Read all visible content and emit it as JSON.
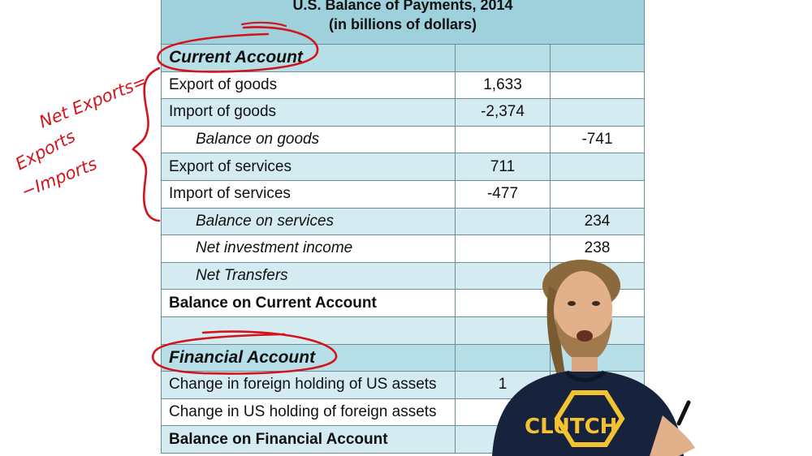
{
  "table": {
    "title_line1": "U.S. Balance of Payments, 2014",
    "title_line2": "(in billions of dollars)",
    "rows": [
      {
        "label": "Current Account",
        "a": "",
        "b": "",
        "style": "section"
      },
      {
        "label": "Export of goods",
        "a": "1,633",
        "b": "",
        "style": "normal"
      },
      {
        "label": "Import of goods",
        "a": "-2,374",
        "b": "",
        "style": "normal"
      },
      {
        "label": "Balance on goods",
        "a": "",
        "b": "-741",
        "style": "indent"
      },
      {
        "label": "Export of services",
        "a": "711",
        "b": "",
        "style": "normal"
      },
      {
        "label": "Import of services",
        "a": "-477",
        "b": "",
        "style": "normal"
      },
      {
        "label": "Balance on services",
        "a": "",
        "b": "234",
        "style": "indent"
      },
      {
        "label": "Net investment income",
        "a": "",
        "b": "238",
        "style": "indent"
      },
      {
        "label": "Net Transfers",
        "a": "",
        "b": "",
        "style": "indent"
      },
      {
        "label": "Balance on Current Account",
        "a": "",
        "b": "",
        "style": "bold"
      },
      {
        "label": "",
        "a": "",
        "b": "",
        "style": "normal"
      },
      {
        "label": "Financial Account",
        "a": "",
        "b": "",
        "style": "section"
      },
      {
        "label": "Change in foreign holding of US assets",
        "a": "1",
        "b": "",
        "style": "normal"
      },
      {
        "label": "Change in US holding of foreign assets",
        "a": "",
        "b": "",
        "style": "normal"
      },
      {
        "label": "Balance on Financial Account",
        "a": "",
        "b": "",
        "style": "bold"
      }
    ]
  },
  "annotations": {
    "net_exports": "Net Exports=",
    "exports": "Exports",
    "minus_imports": "−Imports",
    "ink_color": "#d4141c"
  },
  "presenter": {
    "shirt_text": "CLUTCH"
  }
}
